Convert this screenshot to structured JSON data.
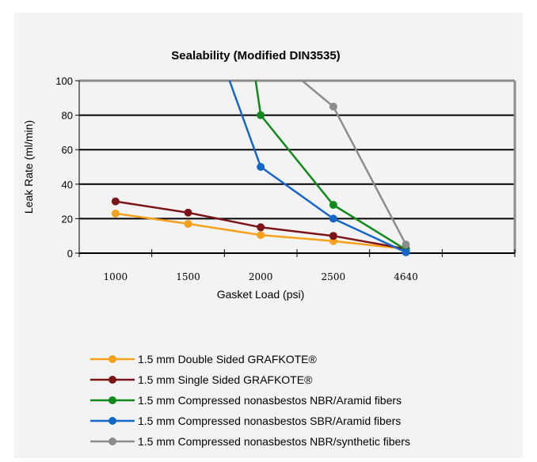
{
  "chart_data": {
    "type": "line",
    "title": "Sealability (Modified DIN3535)",
    "xlabel": "Gasket Load (psi)",
    "ylabel": "Leak Rate (ml/min)",
    "categories": [
      "1000",
      "1500",
      "2000",
      "2500",
      "4640"
    ],
    "ylim": [
      0,
      100
    ],
    "yticks": [
      "0",
      "20",
      "40",
      "60",
      "80",
      "100"
    ],
    "grid": true,
    "legend_position": "bottom",
    "series": [
      {
        "name": "1.5 mm Double Sided GRAFKOTE®",
        "color": "#f7a11a",
        "values": [
          23,
          17,
          10.5,
          7,
          2.5
        ]
      },
      {
        "name": "1.5 mm Single Sided GRAFKOTE®",
        "color": "#7b1416",
        "values": [
          30,
          23.5,
          15,
          10,
          2.5
        ]
      },
      {
        "name": "1.5 mm Compressed nonasbestos NBR/Aramid fibers",
        "color": "#108a1b",
        "values": [
          null,
          null,
          80,
          28,
          2
        ],
        "lead_in_from_top_at": 1.93
      },
      {
        "name": "1.5 mm Compressed nonasbestos SBR/Aramid fibers",
        "color": "#1467c8",
        "values": [
          null,
          null,
          50,
          20,
          0.5
        ],
        "lead_in_from_top_at": 1.57
      },
      {
        "name": "1.5 mm Compressed nonasbestos NBR/synthetic fibers",
        "color": "#8c8c8c",
        "values": [
          null,
          null,
          null,
          85,
          5
        ],
        "lead_in_from_top_at": 2.57
      }
    ]
  }
}
